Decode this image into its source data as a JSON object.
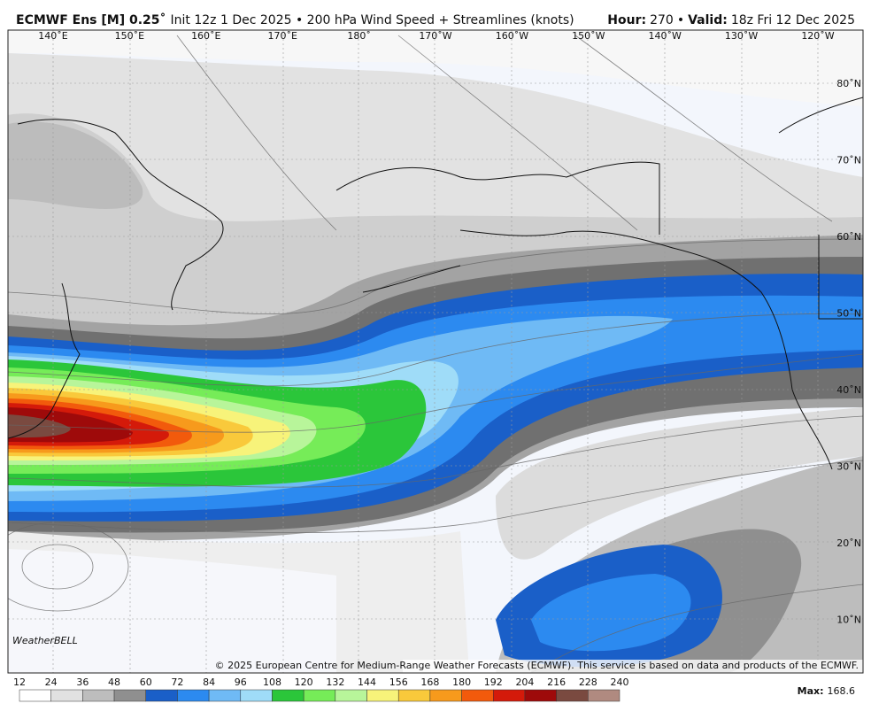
{
  "header": {
    "title": "ECMWF Ens [M] 0.25˚",
    "subtitle": "Init 12z 1 Dec 2025 • 200 hPa Wind Speed + Streamlines (knots)",
    "hour_label": "Hour:",
    "hour": "270",
    "separator": "•",
    "valid_label": "Valid:",
    "valid": "18z Fri 12 Dec 2025"
  },
  "map": {
    "longitude_labels": [
      "140˚E",
      "150˚E",
      "160˚E",
      "170˚E",
      "180˚",
      "170˚W",
      "160˚W",
      "150˚W",
      "140˚W",
      "130˚W",
      "120˚W"
    ],
    "latitude_labels": [
      "80˚N",
      "70˚N",
      "60˚N",
      "50˚N",
      "40˚N",
      "30˚N",
      "20˚N",
      "10˚N"
    ],
    "logo": "WeatherBELL",
    "copyright": "© 2025 European Centre for Medium-Range Weather Forecasts (ECMWF). This service is based on data and products of the ECMWF."
  },
  "colorbar": {
    "ticks": [
      12,
      24,
      36,
      48,
      60,
      72,
      84,
      96,
      108,
      120,
      132,
      144,
      156,
      168,
      180,
      192,
      204,
      216,
      228,
      240
    ],
    "colors": [
      "#ffffff",
      "#e1e1e1",
      "#bdbdbd",
      "#8f8f8f",
      "#1a5fc8",
      "#2c8af0",
      "#6fbaf5",
      "#9fdcf8",
      "#2bc63a",
      "#76ec58",
      "#b8f59a",
      "#f7f37a",
      "#f9c93b",
      "#f79a1c",
      "#f25a0c",
      "#d41a0a",
      "#9e0a0a",
      "#7a4a40",
      "#b08a80"
    ]
  },
  "footer": {
    "max_label": "Max:",
    "max_value": 168.6
  }
}
